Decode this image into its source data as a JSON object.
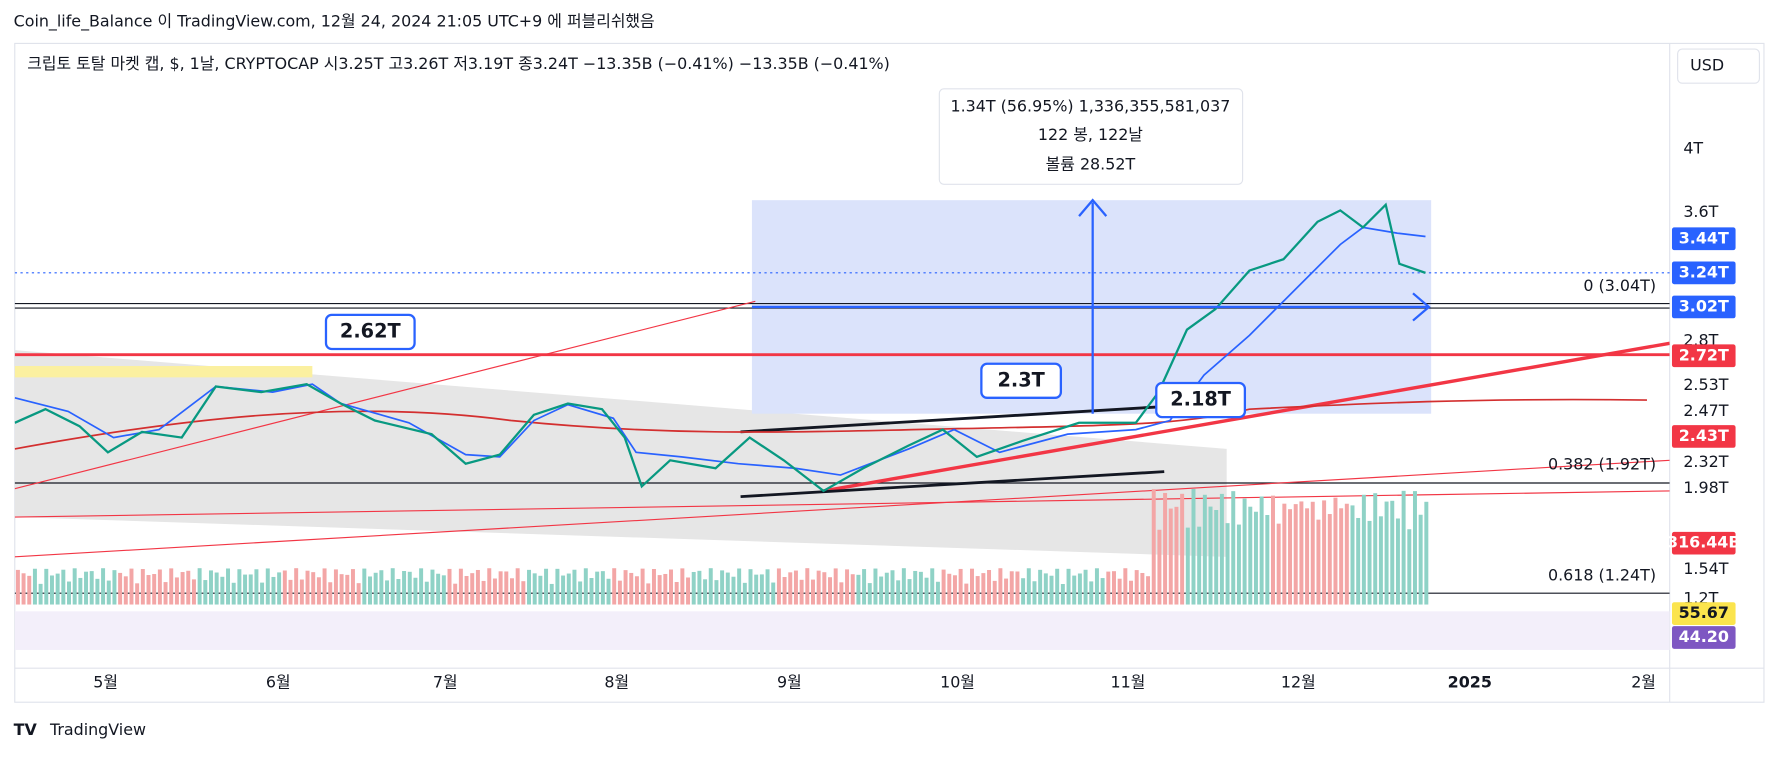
{
  "header": {
    "text": "Coin_life_Balance 이 TradingView.com, 12월 24, 2024 21:05 UTC+9 에 퍼블리쉬했음"
  },
  "legend": {
    "symbol": "크립토 토탈 마켓 캡, $, 1날, CRYPTOCAP",
    "open": "시3.25T",
    "high": "고3.26T",
    "low": "저3.19T",
    "close": "종3.24T",
    "change": "−13.35B (−0.41%)",
    "change2": "−13.35B (−0.41%)"
  },
  "currency": "USD",
  "measure": {
    "lines": [
      "1.34T (56.95%) 1,336,355,581,037",
      "122 봉, 122날",
      "볼륨 28.52T"
    ]
  },
  "callouts": [
    "2.62T",
    "2.3T",
    "2.18T"
  ],
  "fib": [
    "0 (3.04T)",
    "0.382 (1.92T)",
    "0.618 (1.24T)"
  ],
  "price_axis": {
    "ticks": [
      "4T",
      "3.6T",
      "2.8T",
      "2.53T",
      "2.47T",
      "2.32T",
      "1.98T",
      "1.54T",
      "1.2T"
    ],
    "badges": [
      "3.44T",
      "3.24T",
      "3.02T",
      "2.72T",
      "2.43T",
      "316.44B",
      "55.67",
      "44.20"
    ]
  },
  "time_axis": [
    "5월",
    "6월",
    "7월",
    "8월",
    "9월",
    "10월",
    "11월",
    "12월",
    "2025",
    "2월"
  ],
  "footer": {
    "brand": "TradingView"
  }
}
